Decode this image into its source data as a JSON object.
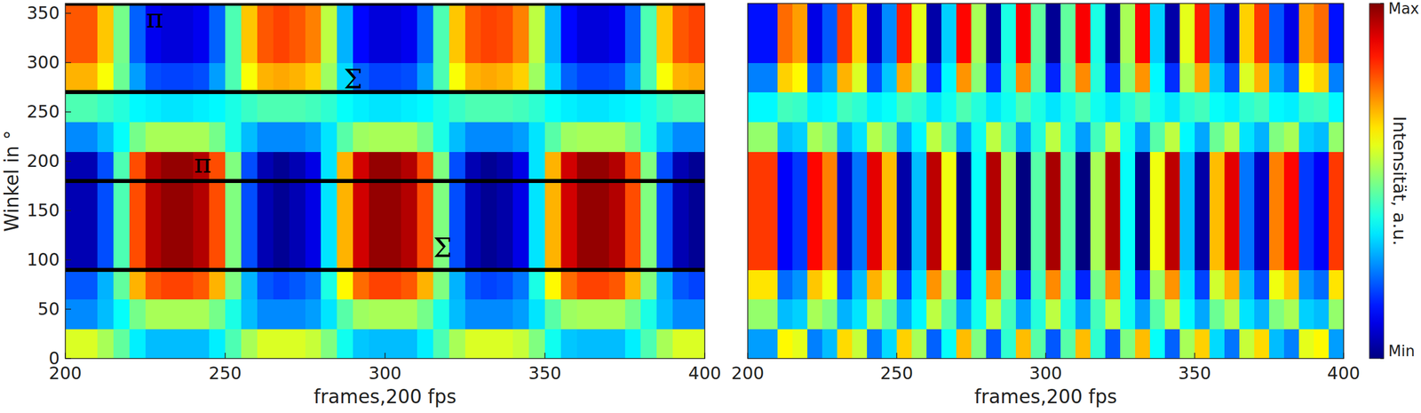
{
  "chart_data": [
    {
      "type": "heatmap",
      "xlabel": "frames,200 fps",
      "ylabel": "Winkel in °",
      "color": "jet",
      "xlim": [
        200,
        400
      ],
      "ylim": [
        0,
        360
      ],
      "xticks": [
        200,
        250,
        300,
        350,
        400
      ],
      "yticks": [
        0,
        50,
        100,
        150,
        200,
        250,
        300,
        350
      ],
      "x_bins": [
        200,
        205,
        210,
        215,
        220,
        225,
        230,
        235,
        240,
        245,
        250,
        255,
        260,
        265,
        270,
        275,
        280,
        285,
        290,
        295,
        300,
        305,
        310,
        315,
        320,
        325,
        330,
        335,
        340,
        345,
        350,
        355,
        360,
        365,
        370,
        375,
        380,
        385,
        390,
        395,
        400
      ],
      "y_bins": [
        0,
        30,
        60,
        90,
        120,
        150,
        180,
        210,
        240,
        270,
        300,
        330,
        360
      ],
      "cells": [
        [
          59,
          59,
          54,
          47,
          36,
          31,
          31,
          31,
          31,
          36,
          45,
          54,
          59,
          59,
          59,
          57,
          50,
          39,
          32,
          31,
          31,
          31,
          36,
          45,
          54,
          59,
          59,
          59,
          57,
          50,
          39,
          32,
          31,
          31,
          31,
          36,
          45,
          54,
          59,
          59
        ],
        [
          26,
          26,
          31,
          38,
          49,
          54,
          54,
          54,
          54,
          49,
          40,
          31,
          26,
          26,
          26,
          28,
          35,
          46,
          53,
          54,
          54,
          54,
          49,
          40,
          31,
          26,
          26,
          26,
          28,
          35,
          46,
          53,
          54,
          54,
          54,
          49,
          40,
          31,
          26,
          26
        ],
        [
          21,
          21,
          30,
          47,
          70,
          79,
          81,
          81,
          79,
          70,
          50,
          30,
          21,
          19,
          21,
          24,
          40,
          63,
          77,
          81,
          81,
          79,
          70,
          50,
          30,
          21,
          19,
          20,
          24,
          40,
          63,
          77,
          81,
          81,
          79,
          70,
          50,
          30,
          21,
          19
        ],
        [
          5,
          5,
          20,
          45,
          80,
          95,
          98,
          98,
          95,
          80,
          50,
          20,
          5,
          2,
          5,
          10,
          35,
          70,
          92,
          98,
          98,
          95,
          80,
          50,
          20,
          5,
          2,
          4,
          10,
          35,
          70,
          92,
          98,
          98,
          95,
          80,
          50,
          20,
          5,
          2
        ],
        [
          5,
          5,
          20,
          45,
          80,
          95,
          98,
          98,
          95,
          80,
          50,
          20,
          5,
          2,
          5,
          10,
          35,
          70,
          92,
          98,
          98,
          95,
          80,
          50,
          20,
          5,
          2,
          4,
          10,
          35,
          70,
          92,
          98,
          98,
          95,
          80,
          50,
          20,
          5,
          2
        ],
        [
          5,
          5,
          20,
          45,
          80,
          95,
          98,
          98,
          95,
          80,
          50,
          20,
          5,
          2,
          5,
          10,
          35,
          70,
          92,
          98,
          98,
          95,
          80,
          50,
          20,
          5,
          2,
          4,
          10,
          35,
          70,
          92,
          98,
          98,
          95,
          80,
          50,
          20,
          5,
          2
        ],
        [
          5,
          5,
          20,
          45,
          80,
          95,
          98,
          98,
          95,
          80,
          50,
          20,
          5,
          2,
          5,
          10,
          35,
          70,
          92,
          98,
          98,
          95,
          80,
          50,
          20,
          5,
          2,
          4,
          10,
          35,
          70,
          92,
          98,
          98,
          95,
          80,
          50,
          20,
          5,
          2
        ],
        [
          26,
          26,
          31,
          38,
          49,
          54,
          54,
          54,
          54,
          49,
          40,
          31,
          26,
          26,
          26,
          28,
          35,
          46,
          53,
          54,
          54,
          54,
          49,
          40,
          31,
          26,
          26,
          26,
          28,
          35,
          46,
          53,
          54,
          54,
          54,
          49,
          40,
          31,
          26,
          26
        ],
        [
          45,
          45,
          43,
          41,
          37,
          36,
          35,
          35,
          36,
          37,
          40,
          43,
          45,
          45,
          45,
          44,
          42,
          38,
          36,
          35,
          35,
          36,
          37,
          40,
          43,
          45,
          45,
          45,
          44,
          42,
          38,
          36,
          35,
          35,
          36,
          37,
          40,
          43,
          45,
          45
        ],
        [
          70,
          70,
          62,
          48,
          28,
          20,
          19,
          19,
          20,
          28,
          45,
          62,
          70,
          71,
          70,
          67,
          53,
          34,
          22,
          19,
          19,
          20,
          28,
          45,
          62,
          70,
          71,
          70,
          67,
          53,
          34,
          22,
          19,
          19,
          20,
          28,
          45,
          62,
          70,
          71
        ],
        [
          79,
          79,
          68,
          49,
          22,
          11,
          9,
          9,
          11,
          22,
          45,
          68,
          79,
          81,
          79,
          75,
          56,
          30,
          13,
          9,
          9,
          11,
          22,
          45,
          68,
          79,
          81,
          80,
          75,
          56,
          30,
          13,
          9,
          9,
          11,
          22,
          45,
          68,
          79,
          81
        ],
        [
          79,
          79,
          68,
          49,
          22,
          11,
          9,
          9,
          11,
          22,
          45,
          68,
          79,
          81,
          79,
          75,
          56,
          30,
          13,
          9,
          9,
          11,
          22,
          45,
          68,
          79,
          81,
          80,
          75,
          56,
          30,
          13,
          9,
          9,
          11,
          22,
          45,
          68,
          79,
          81
        ]
      ],
      "hlines": [
        90,
        180,
        270,
        360
      ],
      "annotations": [
        {
          "text": "π",
          "x": 228,
          "y": 345
        },
        {
          "text": "Σ",
          "x": 290,
          "y": 283
        },
        {
          "text": "π",
          "x": 243,
          "y": 198
        },
        {
          "text": "Σ",
          "x": 318,
          "y": 112
        }
      ]
    },
    {
      "type": "heatmap",
      "xlabel": "frames,200 fps",
      "color": "jet",
      "tick_labels": "x",
      "xlim": [
        200,
        400
      ],
      "ylim": [
        0,
        360
      ],
      "xticks": [
        200,
        250,
        300,
        350,
        400
      ],
      "x_bins": [
        200,
        205,
        210,
        215,
        220,
        225,
        230,
        235,
        240,
        245,
        250,
        255,
        260,
        265,
        270,
        275,
        280,
        285,
        290,
        295,
        300,
        305,
        310,
        315,
        320,
        325,
        330,
        335,
        340,
        345,
        350,
        355,
        360,
        365,
        370,
        375,
        380,
        385,
        390,
        395,
        400
      ],
      "y_bins": [
        0,
        30,
        60,
        90,
        120,
        150,
        180,
        210,
        240,
        270,
        300,
        330,
        360
      ],
      "cells": [
        [
          28,
          28,
          63,
          60,
          25,
          31,
          66,
          57,
          24,
          34,
          67,
          54,
          22,
          38,
          69,
          50,
          21,
          42,
          69,
          46,
          21,
          46,
          69,
          42,
          21,
          50,
          69,
          38,
          22,
          54,
          67,
          34,
          24,
          57,
          66,
          31,
          25,
          60,
          63,
          28
        ],
        [
          52,
          52,
          31,
          33,
          54,
          50,
          30,
          35,
          55,
          48,
          29,
          37,
          56,
          46,
          28,
          39,
          56,
          44,
          28,
          41,
          56,
          41,
          28,
          44,
          56,
          39,
          28,
          46,
          56,
          37,
          29,
          48,
          55,
          35,
          30,
          50,
          54,
          33,
          31,
          52
        ],
        [
          65,
          65,
          23,
          27,
          68,
          61,
          20,
          31,
          70,
          58,
          19,
          35,
          73,
          53,
          17,
          39,
          73,
          49,
          16,
          44,
          74,
          44,
          16,
          49,
          73,
          39,
          17,
          53,
          73,
          35,
          19,
          58,
          70,
          31,
          20,
          61,
          68,
          27,
          23,
          65
        ],
        [
          82,
          82,
          12,
          18,
          87,
          75,
          7,
          24,
          90,
          69,
          4,
          31,
          94,
          61,
          1,
          38,
          95,
          54,
          0,
          46,
          96,
          46,
          0,
          54,
          95,
          38,
          1,
          61,
          94,
          31,
          4,
          69,
          90,
          24,
          7,
          75,
          87,
          18,
          12,
          82
        ],
        [
          82,
          82,
          12,
          18,
          87,
          75,
          7,
          24,
          90,
          69,
          4,
          31,
          94,
          61,
          1,
          38,
          95,
          54,
          0,
          46,
          96,
          46,
          0,
          54,
          95,
          38,
          1,
          61,
          94,
          31,
          4,
          69,
          90,
          24,
          7,
          75,
          87,
          18,
          12,
          82
        ],
        [
          82,
          82,
          12,
          18,
          87,
          75,
          7,
          24,
          90,
          69,
          4,
          31,
          94,
          61,
          1,
          38,
          95,
          54,
          0,
          46,
          96,
          46,
          0,
          54,
          95,
          38,
          1,
          61,
          94,
          31,
          4,
          69,
          90,
          24,
          7,
          75,
          87,
          18,
          12,
          82
        ],
        [
          82,
          82,
          12,
          18,
          87,
          75,
          7,
          24,
          90,
          69,
          4,
          31,
          94,
          61,
          1,
          38,
          95,
          54,
          0,
          46,
          96,
          46,
          0,
          54,
          95,
          38,
          1,
          61,
          94,
          31,
          4,
          69,
          90,
          24,
          7,
          75,
          87,
          18,
          12,
          82
        ],
        [
          52,
          52,
          31,
          33,
          54,
          50,
          30,
          35,
          55,
          48,
          29,
          37,
          56,
          46,
          28,
          39,
          56,
          44,
          28,
          41,
          56,
          41,
          28,
          44,
          56,
          39,
          28,
          46,
          56,
          37,
          29,
          48,
          55,
          35,
          30,
          50,
          54,
          33,
          31,
          52
        ],
        [
          37,
          37,
          44,
          43,
          36,
          37,
          44,
          42,
          36,
          38,
          44,
          42,
          35,
          39,
          45,
          41,
          35,
          39,
          45,
          40,
          35,
          40,
          45,
          39,
          35,
          41,
          45,
          39,
          35,
          42,
          44,
          38,
          36,
          42,
          44,
          37,
          36,
          43,
          44,
          37
        ],
        [
          25,
          25,
          67,
          63,
          22,
          29,
          70,
          59,
          20,
          32,
          71,
          55,
          17,
          37,
          73,
          51,
          17,
          41,
          74,
          46,
          16,
          46,
          74,
          41,
          17,
          51,
          73,
          37,
          17,
          55,
          71,
          32,
          20,
          59,
          70,
          29,
          22,
          63,
          67,
          25
        ],
        [
          14,
          14,
          77,
          72,
          10,
          21,
          82,
          67,
          7,
          26,
          85,
          60,
          4,
          33,
          87,
          54,
          3,
          40,
          88,
          47,
          2,
          47,
          88,
          40,
          3,
          54,
          87,
          33,
          4,
          60,
          85,
          26,
          7,
          67,
          82,
          21,
          10,
          72,
          77,
          14
        ],
        [
          14,
          14,
          77,
          72,
          10,
          21,
          82,
          67,
          7,
          26,
          85,
          60,
          4,
          33,
          87,
          54,
          3,
          40,
          88,
          47,
          2,
          47,
          88,
          40,
          3,
          54,
          87,
          33,
          4,
          60,
          85,
          26,
          7,
          67,
          82,
          21,
          10,
          72,
          77,
          14
        ]
      ],
      "colorbar": {
        "label": "Intensität, a.u.",
        "range": [
          0,
          100
        ],
        "ticks": [
          {
            "value": 0,
            "label": "Min"
          },
          {
            "value": 100,
            "label": "Max"
          }
        ]
      }
    }
  ]
}
